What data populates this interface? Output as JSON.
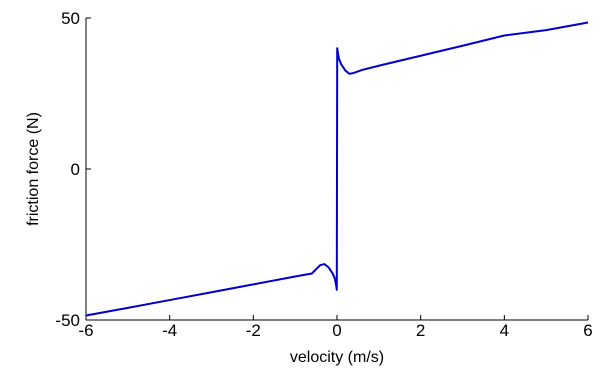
{
  "chart_data": {
    "type": "line",
    "xlabel": "velocity (m/s)",
    "ylabel": "friction force (N)",
    "xlim": [
      -6,
      6
    ],
    "ylim": [
      -50,
      50
    ],
    "xticks": [
      -6,
      -4,
      -2,
      0,
      2,
      4,
      6
    ],
    "yticks": [
      -50,
      0,
      50
    ],
    "grid": false,
    "box": false,
    "line_color": "#0000cc",
    "series": [
      {
        "x": [
          -6,
          -5,
          -4,
          -3,
          -2,
          -1,
          -0.6,
          -0.4,
          -0.3,
          -0.2,
          -0.1,
          -0.05,
          -0.02,
          -0.005,
          0,
          0.005,
          0.02,
          0.05,
          0.1,
          0.2,
          0.3,
          0.4,
          0.6,
          1,
          2,
          3,
          4,
          5,
          6
        ],
        "y": [
          -48.5,
          -46,
          -43.4,
          -40.8,
          -38.2,
          -35.6,
          -34.6,
          -31.8,
          -31.5,
          -32.6,
          -34.7,
          -36.4,
          -38.5,
          -40,
          0,
          40,
          38.5,
          36.4,
          34.7,
          32.6,
          31.5,
          31.8,
          32.8,
          34.2,
          37.5,
          40.8,
          44.2,
          46,
          48.5
        ]
      }
    ]
  }
}
